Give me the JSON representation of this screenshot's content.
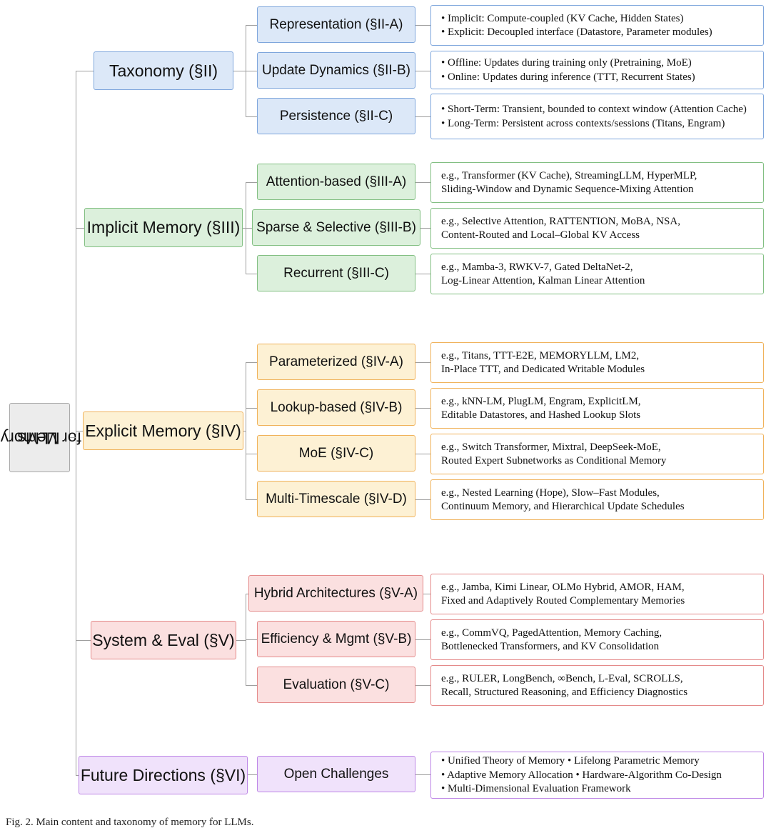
{
  "root": {
    "line1": "Memory",
    "line2": "for LLMs"
  },
  "sections": [
    {
      "label": "Taxonomy (§II)",
      "color": "blue",
      "subs": [
        {
          "label": "Representation (§II-A)",
          "items": [
            "• Implicit: Compute-coupled (KV Cache, Hidden States)",
            "• Explicit: Decoupled interface (Datastore, Parameter modules)"
          ]
        },
        {
          "label": "Update Dynamics (§II-B)",
          "items": [
            "• Offline: Updates during training only (Pretraining, MoE)",
            "• Online: Updates during inference (TTT, Recurrent States)"
          ]
        },
        {
          "label": "Persistence (§II-C)",
          "items": [
            "• Short-Term: Transient, bounded to context window (Attention Cache)",
            "• Long-Term: Persistent across contexts/sessions (Titans, Engram)"
          ]
        }
      ]
    },
    {
      "label": "Implicit Memory (§III)",
      "color": "green",
      "subs": [
        {
          "label": "Attention-based (§III-A)",
          "items": [
            "e.g., Transformer (KV Cache), StreamingLLM, HyperMLP,",
            "Sliding-Window and Dynamic Sequence-Mixing Attention"
          ]
        },
        {
          "label": "Sparse & Selective (§III-B)",
          "items": [
            "e.g., Selective Attention, RATTENTION, MoBA, NSA,",
            "Content-Routed and Local–Global KV Access"
          ]
        },
        {
          "label": "Recurrent (§III-C)",
          "items": [
            "e.g., Mamba-3, RWKV-7, Gated DeltaNet-2,",
            "Log-Linear Attention, Kalman Linear Attention"
          ]
        }
      ]
    },
    {
      "label": "Explicit Memory (§IV)",
      "color": "orange",
      "subs": [
        {
          "label": "Parameterized (§IV-A)",
          "items": [
            "e.g., Titans, TTT-E2E, MEMORYLLM, LM2,",
            "In-Place TTT, and Dedicated Writable Modules"
          ]
        },
        {
          "label": "Lookup-based (§IV-B)",
          "items": [
            "e.g., kNN-LM, PlugLM, Engram, ExplicitLM,",
            "Editable Datastores, and Hashed Lookup Slots"
          ]
        },
        {
          "label": "MoE (§IV-C)",
          "items": [
            "e.g., Switch Transformer, Mixtral, DeepSeek-MoE,",
            "Routed Expert Subnetworks as Conditional Memory"
          ]
        },
        {
          "label": "Multi-Timescale (§IV-D)",
          "items": [
            "e.g., Nested Learning (Hope), Slow–Fast Modules,",
            "Continuum Memory, and Hierarchical Update Schedules"
          ]
        }
      ]
    },
    {
      "label": "System & Eval (§V)",
      "color": "red",
      "subs": [
        {
          "label": "Hybrid Architectures (§V-A)",
          "items": [
            "e.g., Jamba, Kimi Linear, OLMo Hybrid, AMOR, HAM,",
            "Fixed and Adaptively Routed Complementary Memories"
          ]
        },
        {
          "label": "Efficiency & Mgmt (§V-B)",
          "items": [
            "e.g., CommVQ, PagedAttention, Memory Caching,",
            "Bottlenecked Transformers, and KV Consolidation"
          ]
        },
        {
          "label": "Evaluation (§V-C)",
          "items": [
            "e.g., RULER, LongBench, ∞Bench, L-Eval, SCROLLS,",
            "Recall, Structured Reasoning, and Efficiency Diagnostics"
          ]
        }
      ]
    },
    {
      "label": "Future Directions (§VI)",
      "color": "purple",
      "subs": [
        {
          "label": "Open Challenges",
          "items": [
            "• Unified Theory of Memory • Lifelong Parametric Memory",
            "• Adaptive Memory Allocation • Hardware-Algorithm Co-Design",
            "• Multi-Dimensional Evaluation Framework"
          ]
        }
      ]
    }
  ],
  "caption": "Fig. 2.  Main content and taxonomy of memory for LLMs."
}
